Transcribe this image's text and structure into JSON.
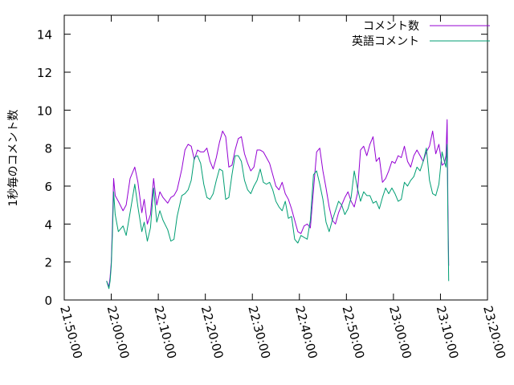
{
  "chart_data": {
    "type": "line",
    "title": "",
    "xlabel": "",
    "ylabel": "1秒毎のコメント数",
    "xlim": [
      "21:50:00",
      "23:20:00"
    ],
    "ylim": [
      0,
      15
    ],
    "x_ticks": [
      "21:50:00",
      "22:00:00",
      "22:10:00",
      "22:20:00",
      "22:30:00",
      "22:40:00",
      "22:50:00",
      "23:00:00",
      "23:10:00",
      "23:20:00"
    ],
    "y_ticks": [
      "0",
      "2",
      "4",
      "6",
      "8",
      "10",
      "12",
      "14"
    ],
    "grid": false,
    "legend_position": "top-right",
    "series": [
      {
        "name": "コメント数",
        "color": "#9400d3",
        "points": [
          [
            "21:59:00",
            1.0
          ],
          [
            "21:59:30",
            0.7
          ],
          [
            "21:59:45",
            1.2
          ],
          [
            "22:00:00",
            2.0
          ],
          [
            "22:00:15",
            4.0
          ],
          [
            "22:00:30",
            6.4
          ],
          [
            "22:00:50",
            5.5
          ],
          [
            "22:01:30",
            5.2
          ],
          [
            "22:02:30",
            4.7
          ],
          [
            "22:03:10",
            5.0
          ],
          [
            "22:04:00",
            6.4
          ],
          [
            "22:05:00",
            7.0
          ],
          [
            "22:05:40",
            6.2
          ],
          [
            "22:06:30",
            4.6
          ],
          [
            "22:07:00",
            5.3
          ],
          [
            "22:07:40",
            4.0
          ],
          [
            "22:08:20",
            4.5
          ],
          [
            "22:09:00",
            6.4
          ],
          [
            "22:09:40",
            5.0
          ],
          [
            "22:10:20",
            5.7
          ],
          [
            "22:11:00",
            5.4
          ],
          [
            "22:12:00",
            5.1
          ],
          [
            "22:12:40",
            5.4
          ],
          [
            "22:13:20",
            5.5
          ],
          [
            "22:14:00",
            5.8
          ],
          [
            "22:15:00",
            6.9
          ],
          [
            "22:15:40",
            7.9
          ],
          [
            "22:16:20",
            8.2
          ],
          [
            "22:17:00",
            8.1
          ],
          [
            "22:17:40",
            7.4
          ],
          [
            "22:18:20",
            7.9
          ],
          [
            "22:19:00",
            7.8
          ],
          [
            "22:19:40",
            7.8
          ],
          [
            "22:20:20",
            8.0
          ],
          [
            "22:21:00",
            7.3
          ],
          [
            "22:21:40",
            6.9
          ],
          [
            "22:22:20",
            7.5
          ],
          [
            "22:23:00",
            8.3
          ],
          [
            "22:23:40",
            8.9
          ],
          [
            "22:24:20",
            8.6
          ],
          [
            "22:25:00",
            7.0
          ],
          [
            "22:25:40",
            7.1
          ],
          [
            "22:26:20",
            7.9
          ],
          [
            "22:27:00",
            8.5
          ],
          [
            "22:27:40",
            8.6
          ],
          [
            "22:28:20",
            7.7
          ],
          [
            "22:29:00",
            7.2
          ],
          [
            "22:29:40",
            6.8
          ],
          [
            "22:30:20",
            7.0
          ],
          [
            "22:31:00",
            7.9
          ],
          [
            "22:31:40",
            7.9
          ],
          [
            "22:32:20",
            7.8
          ],
          [
            "22:33:00",
            7.5
          ],
          [
            "22:33:40",
            7.2
          ],
          [
            "22:34:20",
            6.6
          ],
          [
            "22:35:00",
            6.0
          ],
          [
            "22:35:40",
            5.8
          ],
          [
            "22:36:20",
            6.2
          ],
          [
            "22:37:00",
            5.6
          ],
          [
            "22:37:40",
            5.3
          ],
          [
            "22:38:20",
            4.8
          ],
          [
            "22:39:00",
            4.2
          ],
          [
            "22:39:40",
            3.6
          ],
          [
            "22:40:20",
            3.5
          ],
          [
            "22:41:00",
            3.9
          ],
          [
            "22:41:40",
            4.0
          ],
          [
            "22:42:20",
            3.8
          ],
          [
            "22:43:00",
            5.8
          ],
          [
            "22:43:40",
            7.8
          ],
          [
            "22:44:20",
            8.0
          ],
          [
            "22:45:00",
            6.8
          ],
          [
            "22:45:40",
            5.9
          ],
          [
            "22:46:20",
            4.9
          ],
          [
            "22:47:00",
            4.2
          ],
          [
            "22:47:40",
            4.0
          ],
          [
            "22:48:20",
            4.6
          ],
          [
            "22:49:00",
            5.0
          ],
          [
            "22:49:40",
            5.4
          ],
          [
            "22:50:20",
            5.7
          ],
          [
            "22:51:00",
            5.2
          ],
          [
            "22:51:40",
            4.9
          ],
          [
            "22:52:20",
            5.6
          ],
          [
            "22:53:00",
            7.9
          ],
          [
            "22:53:40",
            8.1
          ],
          [
            "22:54:20",
            7.6
          ],
          [
            "22:55:00",
            8.2
          ],
          [
            "22:55:40",
            8.6
          ],
          [
            "22:56:20",
            7.3
          ],
          [
            "22:57:00",
            7.5
          ],
          [
            "22:57:40",
            6.2
          ],
          [
            "22:58:20",
            6.4
          ],
          [
            "22:59:00",
            6.8
          ],
          [
            "22:59:40",
            7.3
          ],
          [
            "23:00:20",
            7.2
          ],
          [
            "23:01:00",
            7.6
          ],
          [
            "23:01:40",
            7.5
          ],
          [
            "23:02:20",
            8.1
          ],
          [
            "23:03:00",
            7.3
          ],
          [
            "23:03:40",
            7.0
          ],
          [
            "23:04:20",
            7.6
          ],
          [
            "23:05:00",
            7.9
          ],
          [
            "23:05:40",
            7.6
          ],
          [
            "23:06:20",
            7.3
          ],
          [
            "23:07:00",
            7.8
          ],
          [
            "23:07:40",
            8.1
          ],
          [
            "23:08:20",
            8.9
          ],
          [
            "23:09:00",
            7.7
          ],
          [
            "23:09:40",
            8.2
          ],
          [
            "23:10:20",
            7.1
          ],
          [
            "23:10:50",
            7.2
          ],
          [
            "23:11:10",
            7.6
          ],
          [
            "23:11:25",
            9.5
          ],
          [
            "23:11:35",
            5.0
          ],
          [
            "23:11:45",
            1.8
          ]
        ]
      },
      {
        "name": "英語コメント",
        "color": "#009e73",
        "points": [
          [
            "21:59:00",
            1.0
          ],
          [
            "21:59:30",
            0.6
          ],
          [
            "21:59:45",
            1.0
          ],
          [
            "22:00:00",
            1.8
          ],
          [
            "22:00:15",
            3.5
          ],
          [
            "22:00:30",
            5.7
          ],
          [
            "22:00:50",
            4.5
          ],
          [
            "22:01:30",
            3.6
          ],
          [
            "22:02:30",
            3.9
          ],
          [
            "22:03:10",
            3.4
          ],
          [
            "22:04:00",
            4.6
          ],
          [
            "22:05:00",
            6.1
          ],
          [
            "22:05:40",
            4.9
          ],
          [
            "22:06:30",
            3.6
          ],
          [
            "22:07:00",
            4.1
          ],
          [
            "22:07:40",
            3.1
          ],
          [
            "22:08:20",
            3.8
          ],
          [
            "22:09:00",
            5.9
          ],
          [
            "22:09:40",
            4.1
          ],
          [
            "22:10:20",
            4.7
          ],
          [
            "22:11:00",
            4.2
          ],
          [
            "22:12:00",
            3.7
          ],
          [
            "22:12:40",
            3.1
          ],
          [
            "22:13:20",
            3.2
          ],
          [
            "22:14:00",
            4.4
          ],
          [
            "22:15:00",
            5.5
          ],
          [
            "22:15:40",
            5.6
          ],
          [
            "22:16:20",
            5.8
          ],
          [
            "22:17:00",
            6.3
          ],
          [
            "22:17:40",
            7.5
          ],
          [
            "22:18:20",
            7.6
          ],
          [
            "22:19:00",
            7.2
          ],
          [
            "22:19:40",
            6.1
          ],
          [
            "22:20:20",
            5.4
          ],
          [
            "22:21:00",
            5.3
          ],
          [
            "22:21:40",
            5.6
          ],
          [
            "22:22:20",
            6.3
          ],
          [
            "22:23:00",
            6.9
          ],
          [
            "22:23:40",
            6.8
          ],
          [
            "22:24:20",
            5.3
          ],
          [
            "22:25:00",
            5.4
          ],
          [
            "22:25:40",
            6.6
          ],
          [
            "22:26:20",
            7.6
          ],
          [
            "22:27:00",
            7.6
          ],
          [
            "22:27:40",
            7.3
          ],
          [
            "22:28:20",
            6.3
          ],
          [
            "22:29:00",
            5.8
          ],
          [
            "22:29:40",
            5.6
          ],
          [
            "22:30:20",
            6.0
          ],
          [
            "22:31:00",
            6.3
          ],
          [
            "22:31:40",
            6.9
          ],
          [
            "22:32:20",
            6.2
          ],
          [
            "22:33:00",
            6.1
          ],
          [
            "22:33:40",
            6.2
          ],
          [
            "22:34:20",
            5.8
          ],
          [
            "22:35:00",
            5.2
          ],
          [
            "22:35:40",
            4.9
          ],
          [
            "22:36:20",
            4.7
          ],
          [
            "22:37:00",
            5.2
          ],
          [
            "22:37:40",
            4.3
          ],
          [
            "22:38:20",
            4.4
          ],
          [
            "22:39:00",
            3.2
          ],
          [
            "22:39:40",
            3.0
          ],
          [
            "22:40:20",
            3.4
          ],
          [
            "22:41:00",
            3.3
          ],
          [
            "22:41:40",
            3.2
          ],
          [
            "22:42:20",
            4.2
          ],
          [
            "22:43:00",
            6.6
          ],
          [
            "22:43:40",
            6.8
          ],
          [
            "22:44:20",
            6.1
          ],
          [
            "22:45:00",
            5.3
          ],
          [
            "22:45:40",
            4.1
          ],
          [
            "22:46:20",
            3.6
          ],
          [
            "22:47:00",
            4.2
          ],
          [
            "22:47:40",
            4.7
          ],
          [
            "22:48:20",
            5.2
          ],
          [
            "22:49:00",
            5.0
          ],
          [
            "22:49:40",
            4.5
          ],
          [
            "22:50:20",
            4.8
          ],
          [
            "22:51:00",
            5.4
          ],
          [
            "22:51:40",
            6.8
          ],
          [
            "22:52:20",
            5.9
          ],
          [
            "22:53:00",
            5.2
          ],
          [
            "22:53:40",
            5.7
          ],
          [
            "22:54:20",
            5.5
          ],
          [
            "22:55:00",
            5.5
          ],
          [
            "22:55:40",
            5.1
          ],
          [
            "22:56:20",
            5.2
          ],
          [
            "22:57:00",
            4.8
          ],
          [
            "22:57:40",
            5.4
          ],
          [
            "22:58:20",
            5.9
          ],
          [
            "22:59:00",
            5.6
          ],
          [
            "22:59:40",
            5.9
          ],
          [
            "23:00:20",
            5.6
          ],
          [
            "23:01:00",
            5.2
          ],
          [
            "23:01:40",
            5.3
          ],
          [
            "23:02:20",
            6.2
          ],
          [
            "23:03:00",
            6.0
          ],
          [
            "23:03:40",
            6.3
          ],
          [
            "23:04:20",
            6.5
          ],
          [
            "23:05:00",
            7.0
          ],
          [
            "23:05:40",
            6.8
          ],
          [
            "23:06:20",
            7.3
          ],
          [
            "23:07:00",
            8.0
          ],
          [
            "23:07:40",
            6.3
          ],
          [
            "23:08:20",
            5.6
          ],
          [
            "23:09:00",
            5.5
          ],
          [
            "23:09:40",
            6.1
          ],
          [
            "23:10:20",
            7.8
          ],
          [
            "23:10:50",
            7.3
          ],
          [
            "23:11:10",
            7.0
          ],
          [
            "23:11:25",
            8.2
          ],
          [
            "23:11:35",
            4.2
          ],
          [
            "23:11:45",
            1.0
          ]
        ]
      }
    ]
  }
}
